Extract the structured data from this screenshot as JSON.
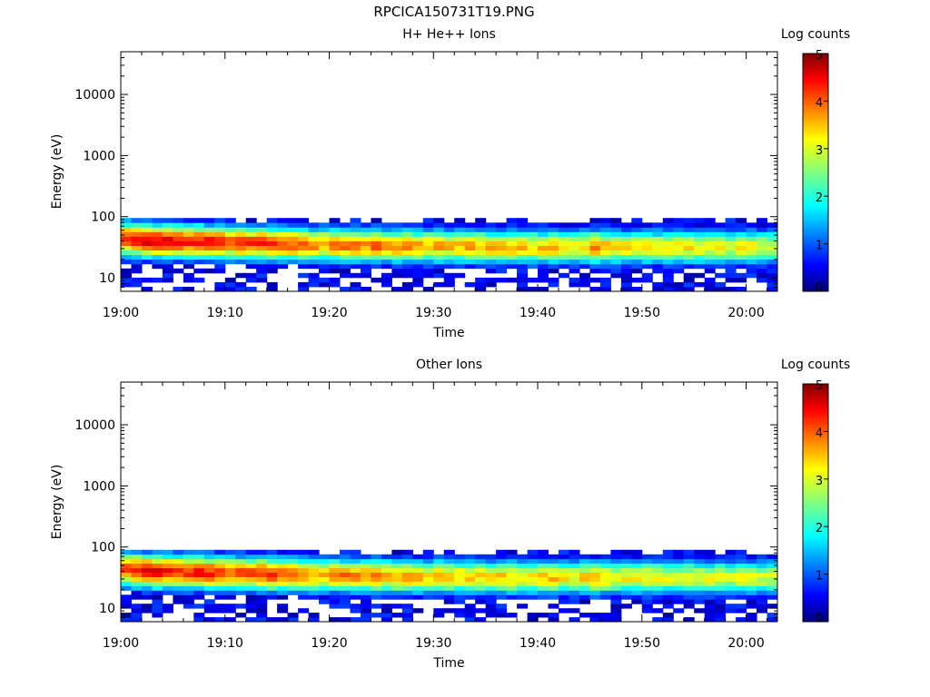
{
  "page": {
    "title": "RPCICA150731T19.PNG"
  },
  "chart_data": [
    {
      "type": "heatmap",
      "title": "H+ He++ Ions",
      "xlabel": "Time",
      "ylabel": "Energy (eV)",
      "x_ticks": [
        "19:00",
        "19:10",
        "19:20",
        "19:30",
        "19:40",
        "19:50",
        "20:00"
      ],
      "y_ticks": [
        "10",
        "100",
        "1000",
        "10000"
      ],
      "y_scale": "log",
      "ylim": [
        6,
        50000
      ],
      "x_range_minutes": [
        0,
        63
      ],
      "colorbar": {
        "label": "Log counts",
        "range": [
          0,
          5
        ],
        "ticks": [
          "0",
          "1",
          "2",
          "3",
          "4",
          "5"
        ]
      },
      "peak_energy_eV": [
        44,
        42,
        41,
        40,
        40,
        40,
        39,
        39,
        38,
        38,
        38,
        37,
        37,
        37,
        36,
        36,
        36,
        35,
        35,
        35,
        35,
        34,
        34,
        34,
        34,
        34,
        33,
        33,
        33,
        33,
        33,
        33,
        33,
        33,
        33,
        32,
        32,
        32,
        32,
        32,
        32,
        32,
        32,
        32,
        32,
        32,
        32,
        32,
        32,
        32,
        32,
        32,
        32,
        32,
        32,
        32,
        32,
        32,
        32,
        32,
        32,
        32,
        32
      ],
      "peak_log_counts": [
        4.2,
        4.4,
        4.5,
        4.5,
        4.4,
        4.3,
        4.2,
        4.3,
        4.3,
        4.2,
        4.1,
        4.1,
        4.1,
        4.1,
        4.2,
        4.1,
        4.0,
        3.8,
        3.7,
        3.6,
        3.8,
        3.9,
        3.8,
        3.7,
        3.9,
        3.6,
        3.7,
        3.7,
        3.6,
        3.5,
        3.6,
        3.5,
        3.4,
        3.5,
        3.4,
        3.5,
        3.5,
        3.4,
        3.4,
        3.3,
        3.4,
        3.5,
        3.3,
        3.2,
        3.4,
        3.7,
        3.4,
        3.3,
        3.2,
        3.2,
        3.3,
        3.2,
        3.1,
        3.2,
        3.2,
        3.1,
        3.1,
        3.1,
        3.0,
        3.2,
        3.1,
        3.0,
        3.0
      ],
      "energy_range_eV": [
        6,
        95
      ]
    },
    {
      "type": "heatmap",
      "title": "Other Ions",
      "xlabel": "Time",
      "ylabel": "Energy (eV)",
      "x_ticks": [
        "19:00",
        "19:10",
        "19:20",
        "19:30",
        "19:40",
        "19:50",
        "20:00"
      ],
      "y_ticks": [
        "10",
        "100",
        "1000",
        "10000"
      ],
      "y_scale": "log",
      "ylim": [
        6,
        50000
      ],
      "x_range_minutes": [
        0,
        63
      ],
      "colorbar": {
        "label": "Log counts",
        "range": [
          0,
          5
        ],
        "ticks": [
          "0",
          "1",
          "2",
          "3",
          "4",
          "5"
        ]
      },
      "peak_energy_eV": [
        44,
        42,
        41,
        40,
        40,
        40,
        39,
        39,
        38,
        38,
        38,
        37,
        37,
        37,
        36,
        36,
        36,
        35,
        35,
        35,
        35,
        34,
        34,
        34,
        34,
        34,
        33,
        33,
        33,
        33,
        33,
        33,
        33,
        33,
        33,
        32,
        32,
        32,
        32,
        32,
        32,
        32,
        32,
        32,
        32,
        32,
        32,
        32,
        32,
        32,
        32,
        32,
        32,
        32,
        32,
        32,
        32,
        32,
        32,
        32,
        32,
        32,
        32
      ],
      "peak_log_counts": [
        4.1,
        4.3,
        4.4,
        4.4,
        4.3,
        4.2,
        4.2,
        4.3,
        4.2,
        4.1,
        4.0,
        4.0,
        4.0,
        4.1,
        4.2,
        4.0,
        3.9,
        3.7,
        3.6,
        3.5,
        3.7,
        3.8,
        3.7,
        3.6,
        3.8,
        3.5,
        3.6,
        3.6,
        3.5,
        3.4,
        3.5,
        3.4,
        3.3,
        3.4,
        3.3,
        3.4,
        3.4,
        3.3,
        3.3,
        3.2,
        3.3,
        3.4,
        3.2,
        3.1,
        3.3,
        3.6,
        3.3,
        3.2,
        3.1,
        3.1,
        3.2,
        3.1,
        3.0,
        3.1,
        3.1,
        3.0,
        3.0,
        3.0,
        2.9,
        3.1,
        3.0,
        2.9,
        2.9
      ],
      "energy_range_eV": [
        6,
        90
      ]
    }
  ]
}
